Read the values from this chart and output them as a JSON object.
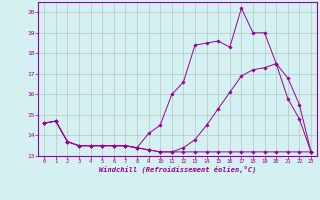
{
  "title": "",
  "xlabel": "Windchill (Refroidissement éolien,°C)",
  "ylabel": "",
  "bg_color": "#d4f0f0",
  "line_color": "#990099",
  "grid_color": "#b0c8c8",
  "xlim": [
    -0.5,
    23.5
  ],
  "ylim": [
    13,
    20.5
  ],
  "yticks": [
    13,
    14,
    15,
    16,
    17,
    18,
    19,
    20
  ],
  "xticks": [
    0,
    1,
    2,
    3,
    4,
    5,
    6,
    7,
    8,
    9,
    10,
    11,
    12,
    13,
    14,
    15,
    16,
    17,
    18,
    19,
    20,
    21,
    22,
    23
  ],
  "series1_x": [
    0,
    1,
    2,
    3,
    4,
    5,
    6,
    7,
    8,
    9,
    10,
    11,
    12,
    13,
    14,
    15,
    16,
    17,
    18,
    19,
    20,
    21,
    22,
    23
  ],
  "series1_y": [
    14.6,
    14.7,
    13.7,
    13.5,
    13.5,
    13.5,
    13.5,
    13.5,
    13.4,
    13.3,
    13.2,
    13.2,
    13.2,
    13.2,
    13.2,
    13.2,
    13.2,
    13.2,
    13.2,
    13.2,
    13.2,
    13.2,
    13.2,
    13.2
  ],
  "series2_x": [
    0,
    1,
    2,
    3,
    4,
    5,
    6,
    7,
    8,
    9,
    10,
    11,
    12,
    13,
    14,
    15,
    16,
    17,
    18,
    19,
    20,
    21,
    22,
    23
  ],
  "series2_y": [
    14.6,
    14.7,
    13.7,
    13.5,
    13.5,
    13.5,
    13.5,
    13.5,
    13.4,
    14.1,
    14.5,
    16.0,
    16.6,
    18.4,
    18.5,
    18.6,
    18.3,
    20.2,
    19.0,
    19.0,
    17.5,
    15.8,
    14.8,
    13.2
  ],
  "series3_x": [
    0,
    1,
    2,
    3,
    4,
    5,
    6,
    7,
    8,
    9,
    10,
    11,
    12,
    13,
    14,
    15,
    16,
    17,
    18,
    19,
    20,
    21,
    22,
    23
  ],
  "series3_y": [
    14.6,
    14.7,
    13.7,
    13.5,
    13.5,
    13.5,
    13.5,
    13.5,
    13.4,
    13.3,
    13.2,
    13.2,
    13.4,
    13.8,
    14.5,
    15.3,
    16.1,
    16.9,
    17.2,
    17.3,
    17.5,
    16.8,
    15.5,
    13.2
  ]
}
